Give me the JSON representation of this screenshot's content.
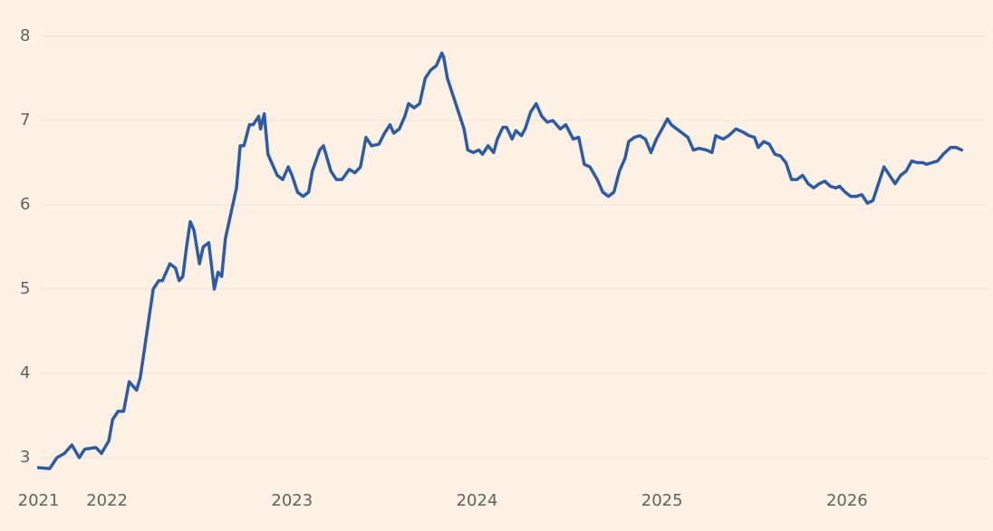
{
  "chart_data": {
    "type": "line",
    "x": [
      2021.63,
      2021.69,
      2021.73,
      2021.77,
      2021.81,
      2021.85,
      2021.88,
      2021.94,
      2021.97,
      2022.01,
      2022.03,
      2022.06,
      2022.09,
      2022.12,
      2022.16,
      2022.18,
      2022.21,
      2022.23,
      2022.25,
      2022.28,
      2022.3,
      2022.34,
      2022.37,
      2022.39,
      2022.41,
      2022.43,
      2022.45,
      2022.47,
      2022.5,
      2022.52,
      2022.55,
      2022.58,
      2022.6,
      2022.62,
      2022.64,
      2022.67,
      2022.7,
      2022.72,
      2022.74,
      2022.77,
      2022.79,
      2022.82,
      2022.83,
      2022.85,
      2022.87,
      2022.89,
      2022.92,
      2022.95,
      2022.98,
      2023.0,
      2023.03,
      2023.06,
      2023.09,
      2023.11,
      2023.15,
      2023.17,
      2023.21,
      2023.24,
      2023.27,
      2023.31,
      2023.34,
      2023.37,
      2023.4,
      2023.43,
      2023.47,
      2023.5,
      2023.53,
      2023.55,
      2023.58,
      2023.61,
      2023.63,
      2023.66,
      2023.69,
      2023.72,
      2023.75,
      2023.78,
      2023.81,
      2023.82,
      2023.84,
      2023.87,
      2023.9,
      2023.93,
      2023.95,
      2023.98,
      2024.01,
      2024.03,
      2024.06,
      2024.09,
      2024.11,
      2024.14,
      2024.16,
      2024.19,
      2024.21,
      2024.24,
      2024.26,
      2024.29,
      2024.32,
      2024.35,
      2024.38,
      2024.41,
      2024.45,
      2024.48,
      2024.52,
      2024.55,
      2024.58,
      2024.61,
      2024.65,
      2024.68,
      2024.71,
      2024.74,
      2024.77,
      2024.8,
      2024.82,
      2024.85,
      2024.88,
      2024.91,
      2024.94,
      2024.97,
      2025.0,
      2025.03,
      2025.05,
      2025.08,
      2025.11,
      2025.14,
      2025.17,
      2025.2,
      2025.24,
      2025.27,
      2025.29,
      2025.33,
      2025.36,
      2025.4,
      2025.44,
      2025.47,
      2025.5,
      2025.52,
      2025.55,
      2025.58,
      2025.61,
      2025.64,
      2025.67,
      2025.7,
      2025.73,
      2025.76,
      2025.79,
      2025.82,
      2025.85,
      2025.88,
      2025.91,
      2025.94,
      2025.96,
      2025.99,
      2026.02,
      2026.05,
      2026.08,
      2026.11,
      2026.14,
      2026.17,
      2026.2,
      2026.23,
      2026.26,
      2026.29,
      2026.32,
      2026.35,
      2026.38,
      2026.41,
      2026.43,
      2026.46,
      2026.49,
      2026.52,
      2026.56,
      2026.59,
      2026.62
    ],
    "series": [
      {
        "color": "#2e5ca4",
        "values": [
          2.88,
          2.87,
          3.0,
          3.05,
          3.15,
          3.0,
          3.1,
          3.12,
          3.05,
          3.2,
          3.45,
          3.55,
          3.55,
          3.9,
          3.8,
          3.95,
          4.4,
          4.7,
          5.0,
          5.1,
          5.1,
          5.3,
          5.25,
          5.1,
          5.15,
          5.5,
          5.8,
          5.7,
          5.3,
          5.5,
          5.55,
          5.0,
          5.2,
          5.15,
          5.6,
          5.9,
          6.2,
          6.7,
          6.7,
          6.95,
          6.95,
          7.05,
          6.9,
          7.08,
          6.6,
          6.5,
          6.35,
          6.3,
          6.45,
          6.35,
          6.15,
          6.1,
          6.15,
          6.4,
          6.65,
          6.7,
          6.4,
          6.3,
          6.3,
          6.42,
          6.38,
          6.45,
          6.8,
          6.7,
          6.72,
          6.85,
          6.95,
          6.85,
          6.9,
          7.05,
          7.2,
          7.15,
          7.2,
          7.5,
          7.6,
          7.65,
          7.8,
          7.75,
          7.5,
          7.3,
          7.1,
          6.9,
          6.65,
          6.62,
          6.65,
          6.6,
          6.7,
          6.62,
          6.78,
          6.92,
          6.92,
          6.78,
          6.88,
          6.82,
          6.9,
          7.1,
          7.2,
          7.05,
          6.98,
          7.0,
          6.9,
          6.95,
          6.78,
          6.8,
          6.48,
          6.45,
          6.3,
          6.15,
          6.1,
          6.15,
          6.4,
          6.55,
          6.75,
          6.8,
          6.82,
          6.78,
          6.62,
          6.78,
          6.9,
          7.02,
          6.95,
          6.9,
          6.85,
          6.8,
          6.65,
          6.67,
          6.65,
          6.62,
          6.82,
          6.78,
          6.82,
          6.9,
          6.86,
          6.82,
          6.8,
          6.68,
          6.75,
          6.72,
          6.6,
          6.58,
          6.5,
          6.3,
          6.3,
          6.35,
          6.25,
          6.2,
          6.25,
          6.28,
          6.22,
          6.2,
          6.22,
          6.15,
          6.1,
          6.1,
          6.12,
          6.02,
          6.05,
          6.25,
          6.45,
          6.35,
          6.25,
          6.35,
          6.4,
          6.52,
          6.5,
          6.5,
          6.48,
          6.5,
          6.52,
          6.6,
          6.68,
          6.68,
          6.65
        ]
      }
    ],
    "xlim": [
      2021.5,
      2026.75
    ],
    "xticks": [
      {
        "value": 2021.63,
        "label": "2021"
      },
      2022,
      2023,
      2024,
      2025,
      2026
    ],
    "ylim": [
      2.8,
      8.2
    ],
    "yticks": [
      3,
      4,
      5,
      6,
      7,
      8
    ],
    "grid": true
  }
}
